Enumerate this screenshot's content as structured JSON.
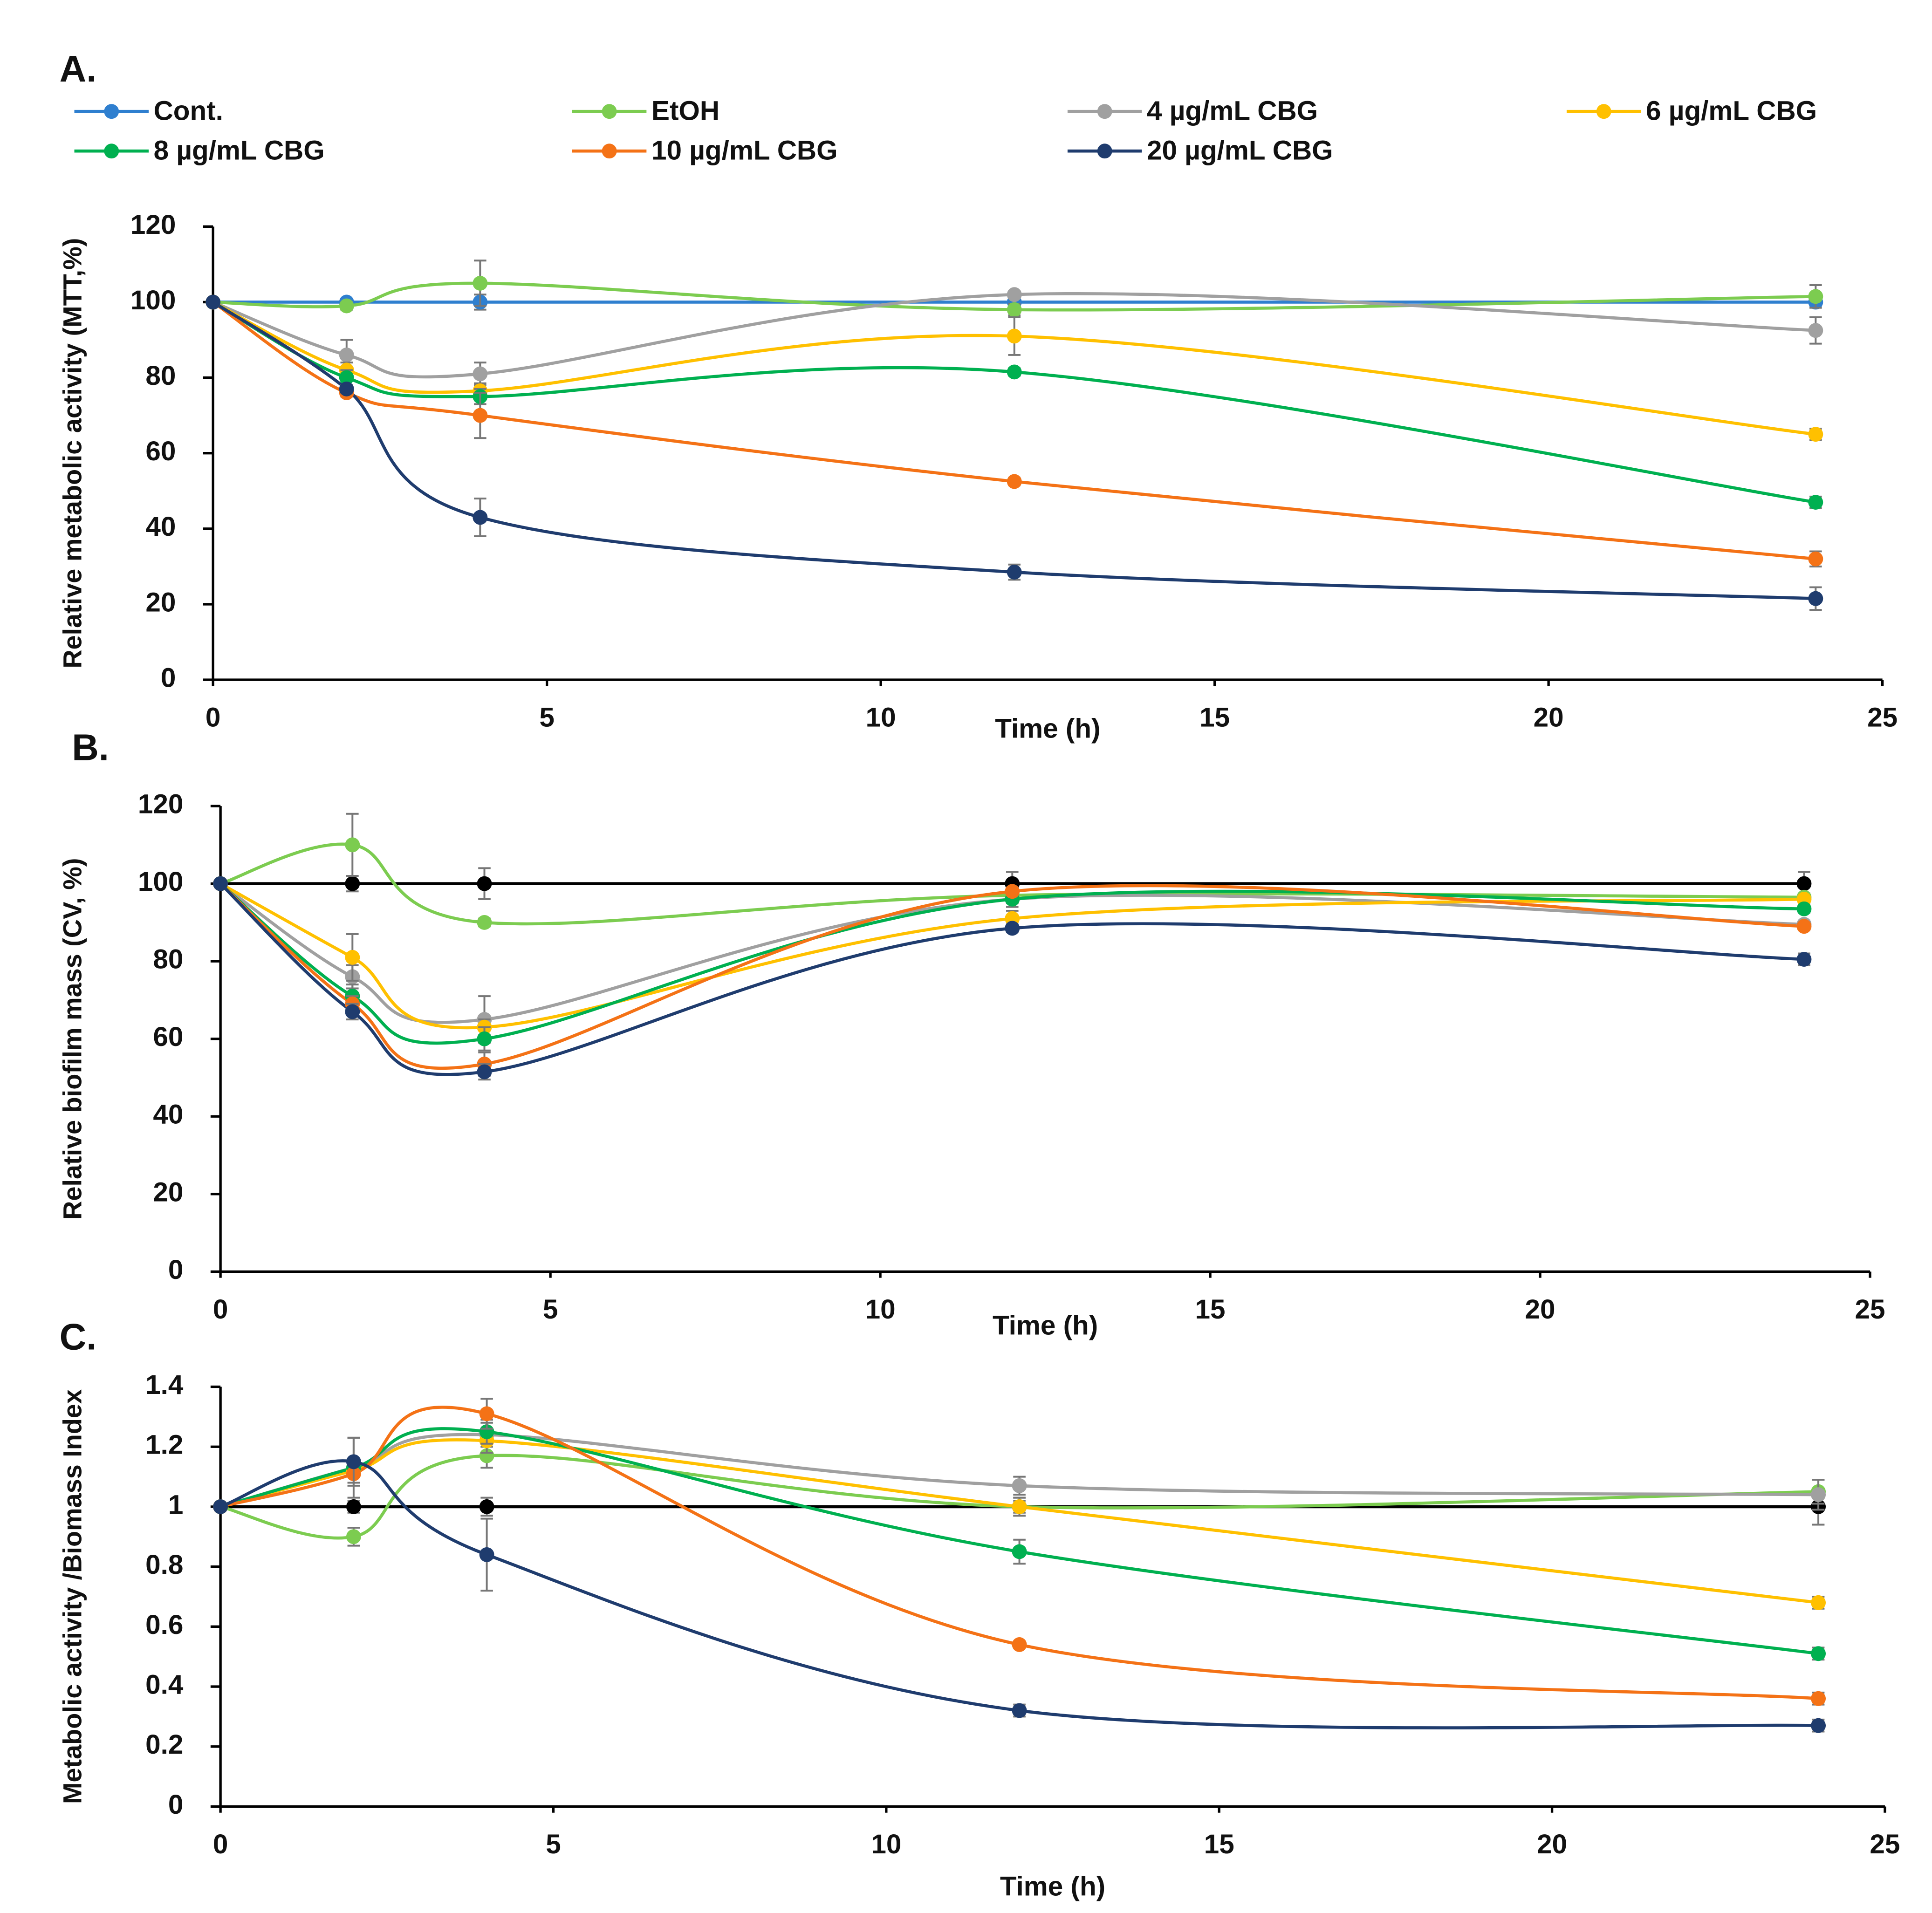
{
  "chart_data": [
    {
      "type": "line",
      "label": "A.",
      "x_label": "Time (h)",
      "y_label": "Relative metabolic activity (MTT,%)",
      "x": [
        0,
        2,
        4,
        12,
        24
      ],
      "xlim": [
        0,
        25
      ],
      "xticks": [
        0,
        5,
        10,
        15,
        20,
        25
      ],
      "ylim": [
        0,
        120
      ],
      "yticks": [
        0,
        20,
        40,
        60,
        80,
        100,
        120
      ],
      "series": [
        {
          "name": "Cont.",
          "color": "#2f7fcf",
          "values": [
            100,
            100,
            100,
            100,
            100
          ],
          "errors": [
            0,
            0,
            2,
            0,
            1
          ]
        },
        {
          "name": "EtOH",
          "color": "#7ccc50",
          "values": [
            100,
            99,
            105,
            98,
            101.5
          ],
          "errors": [
            0,
            1,
            6,
            1.5,
            3
          ]
        },
        {
          "name": "4 µg/mL CBG",
          "color": "#a0a0a0",
          "values": [
            100,
            86,
            81,
            102,
            92.5
          ],
          "errors": [
            0,
            4,
            3,
            1,
            3.5
          ]
        },
        {
          "name": "6 µg/mL CBG",
          "color": "#ffc000",
          "values": [
            100,
            82,
            76.5,
            91,
            65
          ],
          "errors": [
            0,
            2,
            2,
            5,
            1.5
          ]
        },
        {
          "name": "8 µg/mL CBG",
          "color": "#00b050",
          "values": [
            100,
            80,
            75,
            81.5,
            47
          ],
          "errors": [
            0,
            2,
            2,
            1,
            1.5
          ]
        },
        {
          "name": "10 µg/mL CBG",
          "color": "#f47216",
          "values": [
            100,
            76,
            70,
            52.5,
            32
          ],
          "errors": [
            0,
            1,
            6,
            1,
            2
          ]
        },
        {
          "name": "20 µg/mL CBG",
          "color": "#1f3c6e",
          "values": [
            100,
            77,
            43,
            28.5,
            21.5
          ],
          "errors": [
            0,
            1,
            5,
            2,
            3
          ]
        }
      ]
    },
    {
      "type": "line",
      "label": "B.",
      "x_label": "Time (h)",
      "y_label": "Relative biofilm mass (CV, %)",
      "x": [
        0,
        2,
        4,
        12,
        24
      ],
      "xlim": [
        0,
        25
      ],
      "xticks": [
        0,
        5,
        10,
        15,
        20,
        25
      ],
      "ylim": [
        0,
        120
      ],
      "yticks": [
        0,
        20,
        40,
        60,
        80,
        100,
        120
      ],
      "series": [
        {
          "color": "#000000",
          "values": [
            100,
            100,
            100,
            100,
            100
          ],
          "errors": [
            0,
            2,
            4,
            3,
            3
          ]
        },
        {
          "color": "#7ccc50",
          "values": [
            100,
            110,
            90,
            97,
            96.5
          ],
          "errors": [
            0,
            8,
            1,
            2,
            1
          ]
        },
        {
          "color": "#a0a0a0",
          "values": [
            100,
            76,
            65,
            96,
            89.5
          ],
          "errors": [
            0,
            3,
            6,
            2,
            1
          ]
        },
        {
          "color": "#ffc000",
          "values": [
            100,
            81,
            63,
            91,
            96
          ],
          "errors": [
            0,
            6,
            2,
            2,
            1
          ]
        },
        {
          "color": "#00b050",
          "values": [
            100,
            71,
            60,
            96,
            93.5
          ],
          "errors": [
            0,
            3,
            3,
            1,
            1
          ]
        },
        {
          "color": "#f47216",
          "values": [
            100,
            69,
            53.5,
            98,
            89
          ],
          "errors": [
            0,
            2,
            3,
            1,
            1
          ]
        },
        {
          "color": "#1f3c6e",
          "values": [
            100,
            67,
            51.5,
            88.5,
            80.5
          ],
          "errors": [
            0,
            2,
            2,
            1,
            1.5
          ]
        }
      ]
    },
    {
      "type": "line",
      "label": "C.",
      "x_label": "Time (h)",
      "y_label": "Metabolic activity /Biomass Index",
      "x": [
        0,
        2,
        4,
        12,
        24
      ],
      "xlim": [
        0,
        25
      ],
      "xticks": [
        0,
        5,
        10,
        15,
        20,
        25
      ],
      "ylim": [
        0,
        1.4
      ],
      "yticks": [
        0,
        0.2,
        0.4,
        0.6,
        0.8,
        1,
        1.2,
        1.4
      ],
      "series": [
        {
          "color": "#000000",
          "values": [
            1,
            1,
            1,
            1,
            1
          ],
          "errors": [
            0,
            0.02,
            0.03,
            0.03,
            0.06
          ]
        },
        {
          "color": "#7ccc50",
          "values": [
            1,
            0.9,
            1.17,
            1.0,
            1.05
          ],
          "errors": [
            0,
            0.03,
            0.04,
            0.02,
            0.04
          ]
        },
        {
          "color": "#a0a0a0",
          "values": [
            1,
            1.13,
            1.24,
            1.07,
            1.04
          ],
          "errors": [
            0,
            0.1,
            0.04,
            0.03,
            0.05
          ]
        },
        {
          "color": "#ffc000",
          "values": [
            1,
            1.12,
            1.22,
            1.0,
            0.68
          ],
          "errors": [
            0,
            0.02,
            0.04,
            0.03,
            0.02
          ]
        },
        {
          "color": "#00b050",
          "values": [
            1,
            1.13,
            1.25,
            0.85,
            0.51
          ],
          "errors": [
            0,
            0.02,
            0.04,
            0.04,
            0.02
          ]
        },
        {
          "color": "#f47216",
          "values": [
            1,
            1.11,
            1.31,
            0.54,
            0.36
          ],
          "errors": [
            0,
            0.03,
            0.05,
            0.01,
            0.02
          ]
        },
        {
          "color": "#1f3c6e",
          "values": [
            1,
            1.15,
            0.84,
            0.32,
            0.27
          ],
          "errors": [
            0,
            0.08,
            0.12,
            0.02,
            0.02
          ]
        }
      ]
    }
  ]
}
